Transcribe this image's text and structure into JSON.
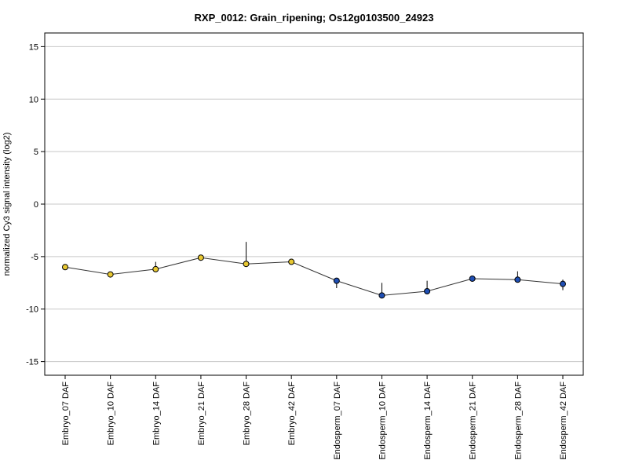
{
  "chart_data": {
    "type": "line",
    "title": "RXP_0012: Grain_ripening; Os12g0103500_24923",
    "xlabel": "",
    "ylabel": "normalized Cy3 signal intensity (log2)",
    "ylim": [
      -16.3,
      16.3
    ],
    "yticks": [
      15,
      10,
      5,
      0,
      -5,
      -10,
      -15
    ],
    "ytick_labels": [
      "15",
      "10",
      "5",
      "0",
      "-5",
      "-10",
      "-15"
    ],
    "grid": "horizontal",
    "categories": [
      "Embryo_07 DAF",
      "Embryo_10 DAF",
      "Embryo_14 DAF",
      "Embryo_21 DAF",
      "Embryo_28 DAF",
      "Embryo_42 DAF",
      "Endosperm_07 DAF",
      "Endosperm_10 DAF",
      "Endosperm_14 DAF",
      "Endosperm_21 DAF",
      "Endosperm_28 DAF",
      "Endosperm_42 DAF"
    ],
    "values": [
      -6.0,
      -6.7,
      -6.2,
      -5.1,
      -5.7,
      -5.5,
      -7.3,
      -8.7,
      -8.3,
      -7.1,
      -7.2,
      -7.6
    ],
    "error_upper": [
      -5.9,
      -6.6,
      -5.5,
      -5.0,
      -3.6,
      -5.4,
      -7.2,
      -7.5,
      -7.3,
      -7.0,
      -6.4,
      -7.2
    ],
    "error_lower": [
      -6.1,
      -6.8,
      -6.3,
      -5.2,
      -5.8,
      -5.6,
      -8.0,
      -8.8,
      -8.4,
      -7.2,
      -7.3,
      -8.2
    ],
    "point_colors": [
      "#e8c832",
      "#e8c832",
      "#e8c832",
      "#e8c832",
      "#e8c832",
      "#e8c832",
      "#1f4fb4",
      "#1f4fb4",
      "#1f4fb4",
      "#1f4fb4",
      "#1f4fb4",
      "#1f4fb4"
    ],
    "line_color": "#333333",
    "grid_color": "#c8c8c8"
  }
}
